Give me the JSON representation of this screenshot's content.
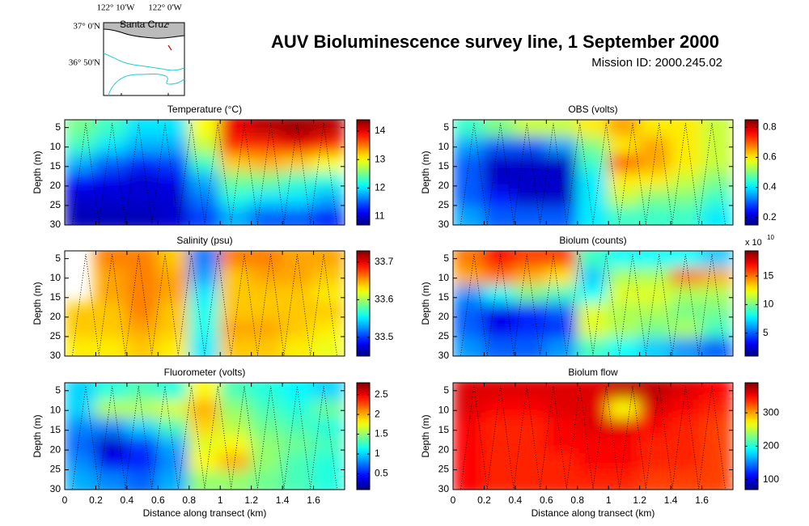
{
  "title": "AUV Bioluminescence survey line, 1 September 2000",
  "subtitle": "Mission ID: 2000.245.02",
  "inset_map": {
    "lon_labels": [
      "122° 10'W",
      "122° 0'W"
    ],
    "lat_labels": [
      "37° 0'N",
      "36° 50'N"
    ],
    "place": "Santa Cruz"
  },
  "chart_data": [
    {
      "type": "heatmap",
      "title": "Temperature (°C)",
      "ylabel": "Depth (m)",
      "xlim": [
        0,
        1.8
      ],
      "xticks": [
        0,
        0.2,
        0.4,
        0.6,
        0.8,
        1,
        1.2,
        1.4,
        1.6
      ],
      "ylim": [
        3,
        30
      ],
      "yticks": [
        5,
        10,
        15,
        20,
        25,
        30
      ],
      "clim": [
        10.7,
        14.4
      ],
      "cticks": [
        11,
        12,
        13,
        14
      ],
      "x": [
        0.1,
        0.3,
        0.5,
        0.7,
        0.9,
        1.1,
        1.3,
        1.5,
        1.7
      ],
      "y": [
        5.25,
        9.75,
        14.25,
        18.75,
        23.25,
        27.75
      ],
      "z": [
        [
          12.5,
          12.3,
          12.0,
          12.0,
          13.0,
          14.0,
          14.2,
          14.3,
          14.2
        ],
        [
          12.3,
          12.0,
          11.8,
          11.8,
          12.8,
          13.8,
          13.8,
          14.0,
          13.8
        ],
        [
          11.8,
          11.5,
          11.3,
          11.4,
          12.3,
          13.2,
          13.3,
          13.2,
          13.0
        ],
        [
          11.2,
          11.1,
          11.0,
          11.1,
          11.8,
          12.5,
          12.5,
          12.3,
          12.2
        ],
        [
          11.0,
          11.0,
          11.0,
          11.0,
          11.6,
          12.2,
          12.0,
          12.0,
          11.8
        ],
        [
          10.9,
          10.9,
          10.9,
          11.0,
          11.4,
          11.8,
          11.5,
          11.5,
          11.3
        ]
      ]
    },
    {
      "type": "heatmap",
      "title": "OBS (volts)",
      "ylabel": "Depth (m)",
      "xlim": [
        0,
        1.8
      ],
      "xticks": [
        0,
        0.2,
        0.4,
        0.6,
        0.8,
        1,
        1.2,
        1.4,
        1.6
      ],
      "ylim": [
        3,
        30
      ],
      "yticks": [
        5,
        10,
        15,
        20,
        25,
        30
      ],
      "clim": [
        0.15,
        0.85
      ],
      "cticks": [
        0.2,
        0.4,
        0.6,
        0.8
      ],
      "x": [
        0.1,
        0.3,
        0.5,
        0.7,
        0.9,
        1.1,
        1.3,
        1.5,
        1.7
      ],
      "y": [
        5.25,
        9.75,
        14.25,
        18.75,
        23.25,
        27.75
      ],
      "z": [
        [
          0.45,
          0.5,
          0.55,
          0.55,
          0.6,
          0.65,
          0.6,
          0.6,
          0.55
        ],
        [
          0.35,
          0.3,
          0.3,
          0.35,
          0.5,
          0.6,
          0.65,
          0.6,
          0.55
        ],
        [
          0.3,
          0.2,
          0.2,
          0.2,
          0.45,
          0.7,
          0.65,
          0.6,
          0.55
        ],
        [
          0.3,
          0.2,
          0.2,
          0.2,
          0.4,
          0.6,
          0.6,
          0.55,
          0.5
        ],
        [
          0.3,
          0.25,
          0.2,
          0.2,
          0.4,
          0.55,
          0.5,
          0.5,
          0.45
        ],
        [
          0.35,
          0.3,
          0.3,
          0.3,
          0.4,
          0.45,
          0.45,
          0.45,
          0.4
        ]
      ]
    },
    {
      "type": "heatmap",
      "title": "Salinity (psu)",
      "ylabel": "Depth (m)",
      "xlim": [
        0,
        1.8
      ],
      "xticks": [
        0,
        0.2,
        0.4,
        0.6,
        0.8,
        1,
        1.2,
        1.4,
        1.6
      ],
      "ylim": [
        3,
        30
      ],
      "yticks": [
        5,
        10,
        15,
        20,
        25,
        30
      ],
      "clim": [
        33.45,
        33.73
      ],
      "cticks": [
        33.5,
        33.6,
        33.7
      ],
      "x": [
        0.1,
        0.3,
        0.5,
        0.7,
        0.9,
        1.1,
        1.3,
        1.5,
        1.7
      ],
      "y": [
        5.25,
        9.75,
        14.25,
        18.75,
        23.25,
        27.75
      ],
      "z": [
        [
          null,
          33.66,
          33.66,
          33.64,
          33.52,
          33.66,
          33.66,
          33.65,
          33.65
        ],
        [
          null,
          33.65,
          33.66,
          33.65,
          33.53,
          33.64,
          33.65,
          33.65,
          33.64
        ],
        [
          null,
          33.65,
          33.66,
          33.65,
          33.55,
          33.64,
          33.64,
          33.64,
          33.63
        ],
        [
          33.64,
          33.64,
          33.66,
          33.64,
          33.56,
          33.64,
          33.64,
          33.64,
          33.64
        ],
        [
          33.64,
          33.64,
          33.65,
          33.64,
          33.56,
          33.65,
          33.65,
          33.64,
          33.63
        ],
        [
          33.63,
          33.63,
          33.64,
          33.63,
          33.55,
          33.64,
          33.64,
          33.63,
          33.62
        ]
      ]
    },
    {
      "type": "heatmap",
      "title": "Biolum (counts)",
      "ylabel": "Depth (m)",
      "multiplier": {
        "base": "x 10",
        "exponent": "10"
      },
      "xlim": [
        0,
        1.8
      ],
      "xticks": [
        0,
        0.2,
        0.4,
        0.6,
        0.8,
        1,
        1.2,
        1.4,
        1.6
      ],
      "ylim": [
        3,
        30
      ],
      "yticks": [
        5,
        10,
        15,
        20,
        25,
        30
      ],
      "clim": [
        1,
        19.4
      ],
      "cticks": [
        5,
        10,
        15
      ],
      "x": [
        0.1,
        0.3,
        0.5,
        0.7,
        0.9,
        1.1,
        1.3,
        1.5,
        1.7
      ],
      "y": [
        5.25,
        9.75,
        14.25,
        18.75,
        23.25,
        27.75
      ],
      "z": [
        [
          15,
          17,
          16,
          16,
          9,
          8,
          8,
          8,
          7
        ],
        [
          14,
          15,
          14,
          13,
          7,
          11,
          11,
          15,
          14
        ],
        [
          6,
          8,
          10,
          9,
          8,
          12,
          12,
          11,
          11
        ],
        [
          5,
          3,
          4,
          5,
          12,
          11,
          11,
          10,
          10
        ],
        [
          5,
          3,
          4,
          4,
          12,
          11,
          10,
          11,
          9
        ],
        [
          6,
          5,
          5,
          6,
          9,
          8,
          7,
          6,
          5
        ]
      ]
    },
    {
      "type": "heatmap",
      "title": "Fluorometer (volts)",
      "ylabel": "Depth (m)",
      "xlabel": "Distance along transect (km)",
      "xlim": [
        0,
        1.8
      ],
      "xticks": [
        0,
        0.2,
        0.4,
        0.6,
        0.8,
        1,
        1.2,
        1.4,
        1.6
      ],
      "ylim": [
        3,
        30
      ],
      "yticks": [
        5,
        10,
        15,
        20,
        25,
        30
      ],
      "clim": [
        0.1,
        2.8
      ],
      "cticks": [
        0.5,
        1,
        1.5,
        2,
        2.5
      ],
      "x": [
        0.1,
        0.3,
        0.5,
        0.7,
        0.9,
        1.1,
        1.3,
        1.5,
        1.7
      ],
      "y": [
        5.25,
        9.75,
        14.25,
        18.75,
        23.25,
        27.75
      ],
      "z": [
        [
          1.0,
          1.2,
          1.3,
          1.2,
          1.8,
          1.3,
          1.2,
          1.1,
          1.0
        ],
        [
          1.0,
          1.6,
          1.6,
          1.7,
          2.0,
          1.5,
          1.3,
          1.2,
          1.4
        ],
        [
          0.8,
          0.8,
          1.0,
          1.3,
          1.9,
          1.6,
          1.4,
          1.3,
          1.2
        ],
        [
          0.7,
          0.3,
          0.6,
          0.9,
          1.7,
          1.8,
          1.5,
          1.4,
          1.3
        ],
        [
          0.8,
          0.4,
          0.5,
          0.8,
          1.8,
          2.0,
          1.5,
          1.3,
          1.2
        ],
        [
          0.9,
          0.8,
          0.7,
          0.9,
          1.5,
          1.5,
          1.4,
          1.3,
          1.2
        ]
      ]
    },
    {
      "type": "heatmap",
      "title": "Biolum flow",
      "ylabel": "Depth (m)",
      "xlabel": "Distance along transect (km)",
      "xlim": [
        0,
        1.8
      ],
      "xticks": [
        0,
        0.2,
        0.4,
        0.6,
        0.8,
        1,
        1.2,
        1.4,
        1.6
      ],
      "ylim": [
        3,
        30
      ],
      "yticks": [
        5,
        10,
        15,
        20,
        25,
        30
      ],
      "clim": [
        70,
        390
      ],
      "cticks": [
        100,
        200,
        300
      ],
      "x": [
        0.1,
        0.3,
        0.5,
        0.7,
        0.9,
        1.1,
        1.3,
        1.5,
        1.7
      ],
      "y": [
        5.25,
        9.75,
        14.25,
        18.75,
        23.25,
        27.75
      ],
      "z": [
        [
          360,
          360,
          360,
          360,
          360,
          370,
          370,
          360,
          350
        ],
        [
          360,
          350,
          350,
          360,
          360,
          270,
          360,
          350,
          340
        ],
        [
          350,
          340,
          340,
          350,
          360,
          360,
          350,
          340,
          330
        ],
        [
          350,
          340,
          340,
          350,
          350,
          350,
          340,
          340,
          330
        ],
        [
          350,
          340,
          340,
          340,
          350,
          350,
          340,
          340,
          330
        ],
        [
          350,
          340,
          340,
          340,
          340,
          340,
          330,
          330,
          330
        ]
      ]
    }
  ]
}
